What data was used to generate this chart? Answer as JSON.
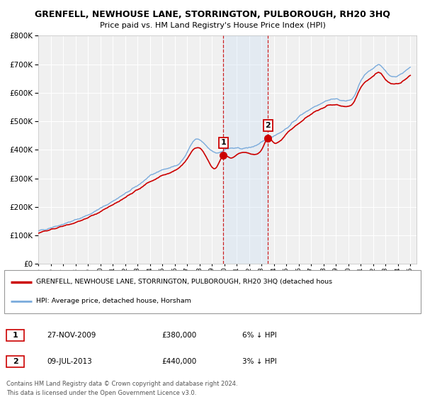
{
  "title": "GRENFELL, NEWHOUSE LANE, STORRINGTON, PULBOROUGH, RH20 3HQ",
  "subtitle": "Price paid vs. HM Land Registry's House Price Index (HPI)",
  "legend_line1": "GRENFELL, NEWHOUSE LANE, STORRINGTON, PULBOROUGH, RH20 3HQ (detached hous",
  "legend_line2": "HPI: Average price, detached house, Horsham",
  "transaction1_date": "27-NOV-2009",
  "transaction1_price": "£380,000",
  "transaction1_note": "6% ↓ HPI",
  "transaction2_date": "09-JUL-2013",
  "transaction2_price": "£440,000",
  "transaction2_note": "3% ↓ HPI",
  "footer1": "Contains HM Land Registry data © Crown copyright and database right 2024.",
  "footer2": "This data is licensed under the Open Government Licence v3.0.",
  "hpi_color": "#7aabdc",
  "price_color": "#cc0000",
  "marker_color": "#cc0000",
  "background_color": "#ffffff",
  "plot_bg_color": "#f0f0f0",
  "grid_color": "#ffffff",
  "vline_color": "#cc0000",
  "shade_color": "#cce0f5",
  "ylim": [
    0,
    800000
  ],
  "yticks": [
    0,
    100000,
    200000,
    300000,
    400000,
    500000,
    600000,
    700000,
    800000
  ],
  "xlim_start": 1995.0,
  "xlim_end": 2025.5,
  "transaction1_x": 2009.92,
  "transaction2_x": 2013.52,
  "transaction1_y": 380000,
  "transaction2_y": 440000
}
